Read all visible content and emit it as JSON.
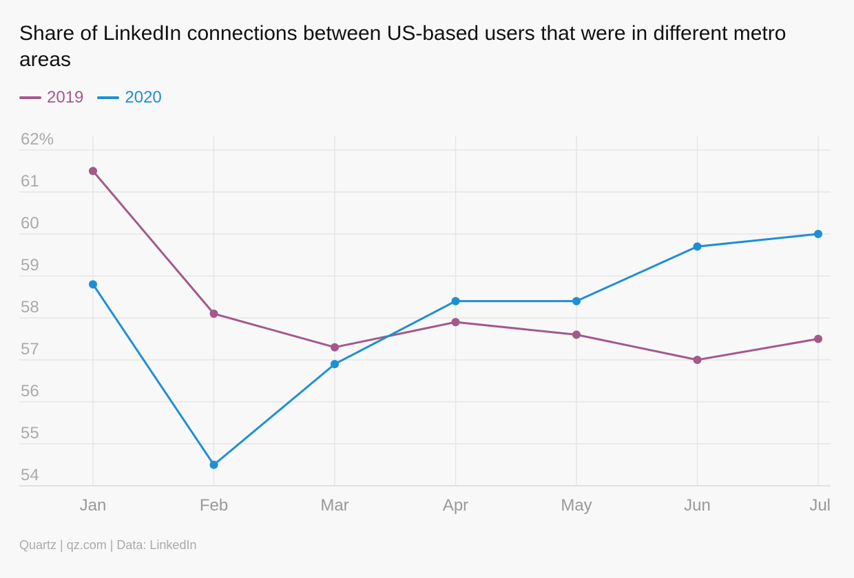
{
  "chart_data": {
    "type": "line",
    "title": "Share of LinkedIn connections between US-based users that were in different metro areas",
    "categories": [
      "Jan",
      "Feb",
      "Mar",
      "Apr",
      "May",
      "Jun",
      "Jul"
    ],
    "series": [
      {
        "name": "2019",
        "color": "#a3598a",
        "values": [
          61.5,
          58.1,
          57.3,
          57.9,
          57.6,
          57.0,
          57.5
        ]
      },
      {
        "name": "2020",
        "color": "#1d8fd4",
        "values": [
          58.8,
          54.5,
          56.9,
          58.4,
          58.4,
          59.7,
          60.0
        ]
      }
    ],
    "ylim": [
      54,
      62
    ],
    "yticks": [
      "54",
      "55",
      "56",
      "57",
      "58",
      "59",
      "60",
      "61",
      "62%"
    ],
    "grid": true,
    "legend_position": "top-left",
    "xlabel": "",
    "ylabel": ""
  },
  "source": "Quartz | qz.com | Data: LinkedIn"
}
